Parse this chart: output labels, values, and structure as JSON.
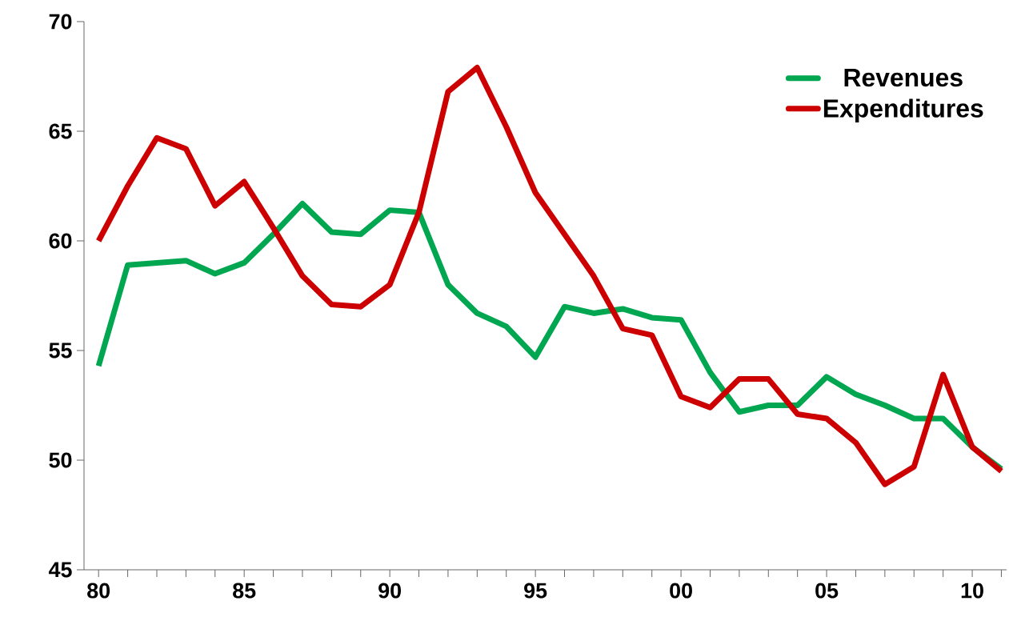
{
  "chart_data": {
    "type": "line",
    "categories": [
      "80",
      null,
      null,
      null,
      null,
      "85",
      null,
      null,
      null,
      null,
      "90",
      null,
      null,
      null,
      null,
      "95",
      null,
      null,
      null,
      null,
      "00",
      null,
      null,
      null,
      null,
      "05",
      null,
      null,
      null,
      null,
      "10",
      null
    ],
    "ylim": [
      45,
      70
    ],
    "yticks": [
      45,
      50,
      55,
      60,
      65,
      70
    ],
    "legend": "top right",
    "grid": false,
    "marker": "none",
    "line_style": "solid",
    "series": [
      {
        "name": "Revenues",
        "color": "#00a650",
        "values": [
          54.3,
          58.9,
          59.0,
          59.1,
          58.5,
          59.0,
          60.3,
          61.7,
          60.4,
          60.3,
          61.4,
          61.3,
          58.0,
          56.7,
          56.1,
          54.7,
          57.0,
          56.7,
          56.9,
          56.5,
          56.4,
          54.0,
          52.2,
          52.5,
          52.5,
          53.8,
          53.0,
          52.5,
          51.9,
          51.9,
          50.6,
          49.6
        ]
      },
      {
        "name": "Expenditures",
        "color": "#cc0000",
        "values": [
          60.0,
          62.5,
          64.7,
          64.2,
          61.6,
          62.7,
          60.6,
          58.4,
          57.1,
          57.0,
          58.0,
          61.3,
          66.8,
          67.9,
          65.2,
          62.2,
          60.3,
          58.4,
          56.0,
          55.7,
          52.9,
          52.4,
          53.7,
          53.7,
          52.1,
          51.9,
          50.8,
          48.9,
          49.7,
          53.9,
          50.6,
          49.5
        ]
      }
    ]
  }
}
